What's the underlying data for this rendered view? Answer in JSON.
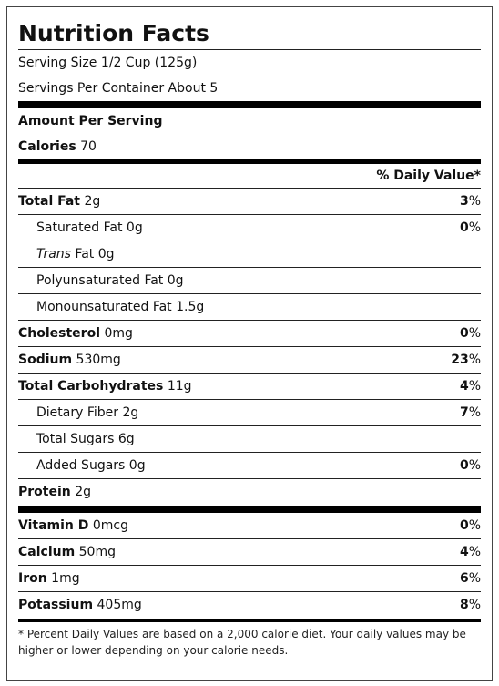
{
  "title": "Nutrition Facts",
  "serving_size": "Serving Size 1/2 Cup (125g)",
  "servings_per_container": "Servings Per Container About 5",
  "amount_per_serving": "Amount Per Serving",
  "calories": {
    "name": "Calories",
    "amount": "70"
  },
  "daily_value_header": "% Daily Value*",
  "nutrients": [
    {
      "name": "Total Fat",
      "amount": "2g",
      "dv": "3%"
    },
    {
      "name": "Saturated Fat",
      "amount": "0g",
      "dv": "0%",
      "indent": true
    },
    {
      "name_italic": "Trans",
      "name": "Fat",
      "amount": "0g",
      "indent": true
    },
    {
      "name": "Polyunsaturated Fat",
      "amount": "0g",
      "indent": true
    },
    {
      "name": "Monounsaturated Fat",
      "amount": "1.5g",
      "indent": true
    },
    {
      "name": "Cholesterol",
      "amount": "0mg",
      "dv": "0%"
    },
    {
      "name": "Sodium",
      "amount": "530mg",
      "dv": "23%"
    },
    {
      "name": "Total Carbohydrates",
      "amount": "11g",
      "dv": "4%"
    },
    {
      "name": "Dietary Fiber",
      "amount": "2g",
      "dv": "7%",
      "indent": true
    },
    {
      "name": "Total Sugars",
      "amount": "6g",
      "indent": true
    },
    {
      "name": "Added Sugars",
      "amount": "0g",
      "dv": "0%",
      "indent": true
    },
    {
      "name": "Protein",
      "amount": "2g"
    }
  ],
  "vitamins": [
    {
      "name": "Vitamin D",
      "amount": "0mcg",
      "dv": "0%"
    },
    {
      "name": "Calcium",
      "amount": "50mg",
      "dv": "4%"
    },
    {
      "name": "Iron",
      "amount": "1mg",
      "dv": "6%"
    },
    {
      "name": "Potassium",
      "amount": "405mg",
      "dv": "8%"
    }
  ],
  "footnote": "* Percent Daily Values are based on a 2,000 calorie diet. Your daily values may be higher or lower depending on your calorie needs."
}
